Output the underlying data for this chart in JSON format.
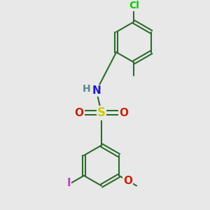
{
  "background_color": "#e8e8e8",
  "bond_color": "#2d6b2d",
  "bond_width": 1.5,
  "atom_colors": {
    "Cl": "#00cc00",
    "N": "#1a1acc",
    "H": "#5a8a8a",
    "S": "#cccc00",
    "O": "#cc2200",
    "I": "#bb44bb",
    "methoxy_O": "#cc2200",
    "methoxy_C": "#2d6b2d"
  },
  "font_size": 10,
  "fig_size": [
    3.0,
    3.0
  ],
  "dpi": 100
}
